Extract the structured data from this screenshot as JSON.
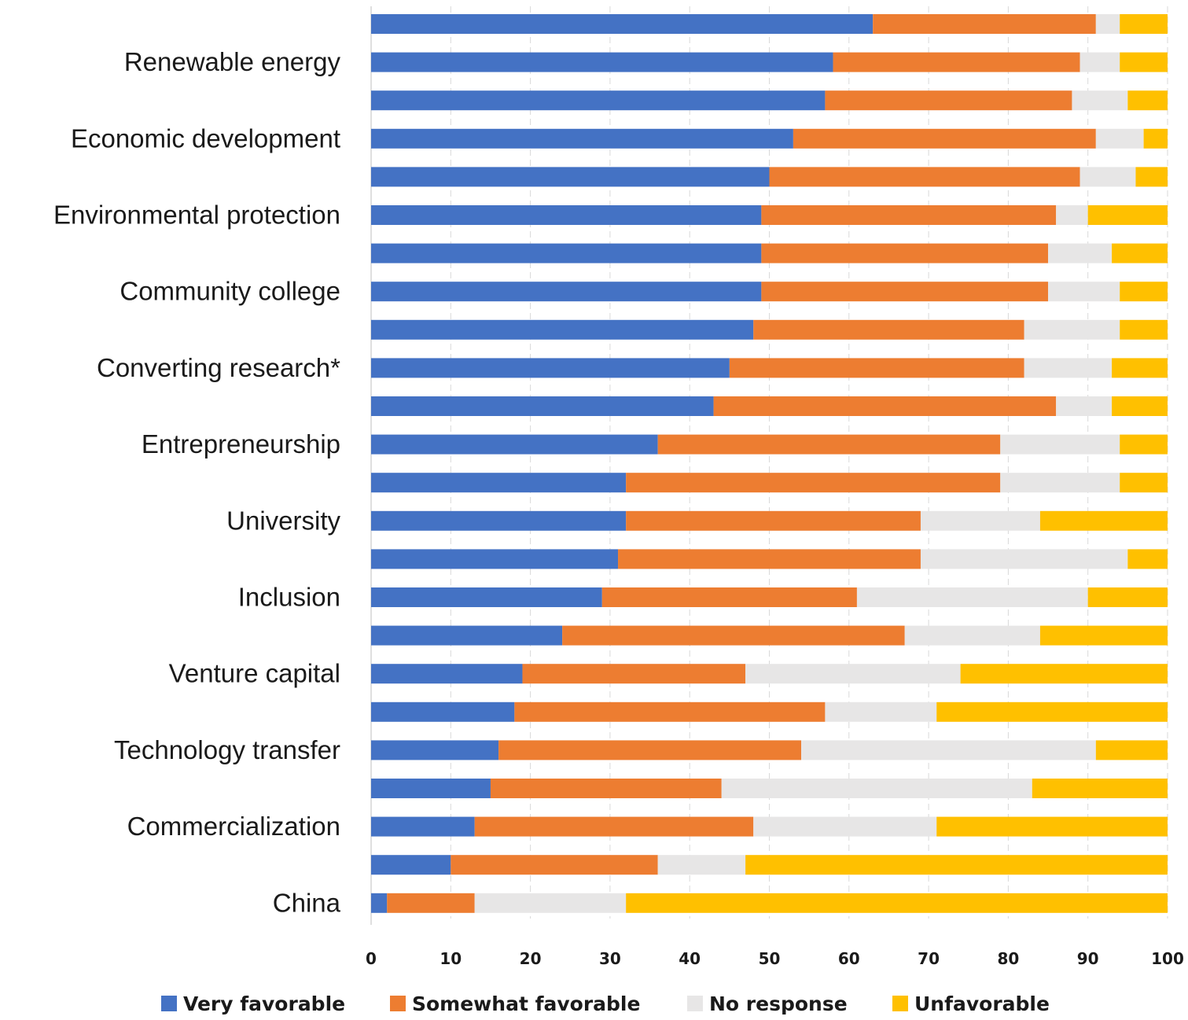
{
  "chart_data": {
    "type": "bar",
    "orientation": "horizontal",
    "stacked": true,
    "title": "",
    "xlabel": "",
    "ylabel": "",
    "xlim": [
      0,
      100
    ],
    "x_ticks": [
      0,
      10,
      20,
      30,
      40,
      50,
      60,
      70,
      80,
      90,
      100
    ],
    "grid": true,
    "legend_position": "bottom",
    "categories": [
      "",
      "Renewable energy",
      "",
      "Economic development",
      "",
      "Environmental protection",
      "",
      "Community college",
      "",
      "Converting research*",
      "",
      "Entrepreneurship",
      "",
      "University",
      "",
      "Inclusion",
      "",
      "Venture capital",
      "",
      "Technology transfer",
      "",
      "Commercialization",
      "",
      "China"
    ],
    "series": [
      {
        "name": "Very favorable",
        "color": "#4472C4",
        "values": [
          63,
          58,
          57,
          53,
          50,
          49,
          49,
          49,
          48,
          45,
          43,
          36,
          32,
          32,
          31,
          29,
          24,
          19,
          18,
          16,
          15,
          13,
          10,
          2
        ]
      },
      {
        "name": "Somewhat favorable",
        "color": "#ED7D31",
        "values": [
          28,
          31,
          31,
          38,
          39,
          37,
          36,
          36,
          34,
          37,
          43,
          43,
          47,
          37,
          38,
          32,
          43,
          28,
          39,
          38,
          29,
          35,
          26,
          11
        ]
      },
      {
        "name": "No response",
        "color": "#E7E6E6",
        "values": [
          3,
          5,
          7,
          6,
          7,
          4,
          8,
          9,
          12,
          11,
          7,
          15,
          15,
          15,
          26,
          29,
          17,
          27,
          14,
          37,
          39,
          23,
          11,
          19
        ]
      },
      {
        "name": "Unfavorable",
        "color": "#FFC000",
        "values": [
          6,
          6,
          5,
          3,
          4,
          10,
          7,
          6,
          6,
          7,
          7,
          6,
          6,
          16,
          5,
          10,
          16,
          26,
          29,
          9,
          17,
          29,
          53,
          68
        ]
      }
    ]
  }
}
